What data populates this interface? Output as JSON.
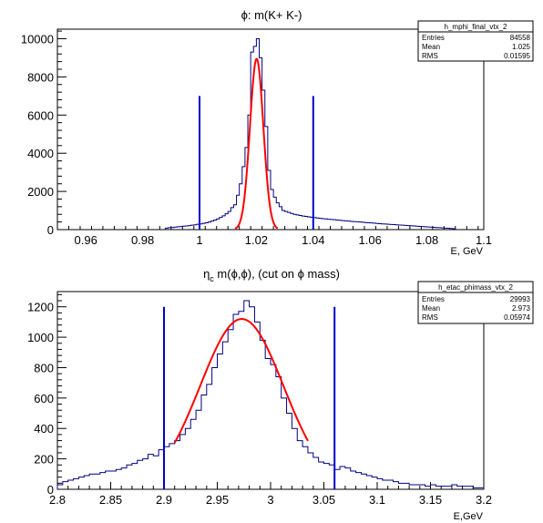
{
  "chart_data": [
    {
      "type": "histogram",
      "title": "ϕ: m(K+ K-)",
      "xlabel": "E, GeV",
      "ylabel": "",
      "xlim": [
        0.95,
        1.1
      ],
      "ylim": [
        0,
        10500
      ],
      "x_ticks": [
        "0.96",
        "0.98",
        "1",
        "1.02",
        "1.04",
        "1.06",
        "1.08",
        "1.1"
      ],
      "x_tick_values": [
        0.96,
        0.98,
        1.0,
        1.02,
        1.04,
        1.06,
        1.08,
        1.1
      ],
      "y_ticks": [
        "0",
        "2000",
        "4000",
        "6000",
        "8000",
        "10000"
      ],
      "y_tick_values": [
        0,
        2000,
        4000,
        6000,
        8000,
        10000
      ],
      "stats": {
        "name": "h_mphi_final_vtx_2",
        "rows": [
          {
            "label": "Entries",
            "value": "84558"
          },
          {
            "label": "Mean",
            "value": "1.025"
          },
          {
            "label": "RMS",
            "value": "0.01595"
          }
        ]
      },
      "cut_lines": [
        1.0,
        1.04
      ],
      "cut_line_height": 7000,
      "fit": {
        "type": "gaussian",
        "mean": 1.0201,
        "sigma": 0.00235,
        "amplitude": 8950,
        "range": [
          1.0125,
          1.0275
        ]
      },
      "bin_width": 0.001,
      "bins": [
        {
          "x": 0.988,
          "y": 80
        },
        {
          "x": 0.989,
          "y": 100
        },
        {
          "x": 0.99,
          "y": 110
        },
        {
          "x": 0.991,
          "y": 130
        },
        {
          "x": 0.992,
          "y": 150
        },
        {
          "x": 0.993,
          "y": 160
        },
        {
          "x": 0.994,
          "y": 180
        },
        {
          "x": 0.995,
          "y": 190
        },
        {
          "x": 0.996,
          "y": 210
        },
        {
          "x": 0.997,
          "y": 230
        },
        {
          "x": 0.998,
          "y": 250
        },
        {
          "x": 0.999,
          "y": 280
        },
        {
          "x": 1.0,
          "y": 300
        },
        {
          "x": 1.001,
          "y": 330
        },
        {
          "x": 1.002,
          "y": 360
        },
        {
          "x": 1.003,
          "y": 400
        },
        {
          "x": 1.004,
          "y": 450
        },
        {
          "x": 1.005,
          "y": 500
        },
        {
          "x": 1.006,
          "y": 560
        },
        {
          "x": 1.007,
          "y": 640
        },
        {
          "x": 1.008,
          "y": 720
        },
        {
          "x": 1.009,
          "y": 830
        },
        {
          "x": 1.01,
          "y": 950
        },
        {
          "x": 1.011,
          "y": 1150
        },
        {
          "x": 1.012,
          "y": 1300
        },
        {
          "x": 1.013,
          "y": 1800
        },
        {
          "x": 1.014,
          "y": 2400
        },
        {
          "x": 1.015,
          "y": 3300
        },
        {
          "x": 1.016,
          "y": 4300
        },
        {
          "x": 1.017,
          "y": 6000
        },
        {
          "x": 1.018,
          "y": 9300
        },
        {
          "x": 1.019,
          "y": 9600
        },
        {
          "x": 1.02,
          "y": 10000
        },
        {
          "x": 1.021,
          "y": 9000
        },
        {
          "x": 1.022,
          "y": 7300
        },
        {
          "x": 1.023,
          "y": 5400
        },
        {
          "x": 1.024,
          "y": 3100
        },
        {
          "x": 1.025,
          "y": 2100
        },
        {
          "x": 1.026,
          "y": 1700
        },
        {
          "x": 1.027,
          "y": 1400
        },
        {
          "x": 1.028,
          "y": 1200
        },
        {
          "x": 1.029,
          "y": 1000
        },
        {
          "x": 1.03,
          "y": 950
        },
        {
          "x": 1.031,
          "y": 900
        },
        {
          "x": 1.032,
          "y": 850
        },
        {
          "x": 1.033,
          "y": 800
        },
        {
          "x": 1.034,
          "y": 770
        },
        {
          "x": 1.035,
          "y": 740
        },
        {
          "x": 1.036,
          "y": 710
        },
        {
          "x": 1.037,
          "y": 690
        },
        {
          "x": 1.038,
          "y": 670
        },
        {
          "x": 1.039,
          "y": 650
        },
        {
          "x": 1.04,
          "y": 630
        },
        {
          "x": 1.041,
          "y": 610
        },
        {
          "x": 1.042,
          "y": 590
        },
        {
          "x": 1.043,
          "y": 570
        },
        {
          "x": 1.044,
          "y": 560
        },
        {
          "x": 1.045,
          "y": 540
        },
        {
          "x": 1.046,
          "y": 530
        },
        {
          "x": 1.047,
          "y": 520
        },
        {
          "x": 1.048,
          "y": 500
        },
        {
          "x": 1.049,
          "y": 490
        },
        {
          "x": 1.05,
          "y": 470
        },
        {
          "x": 1.051,
          "y": 460
        },
        {
          "x": 1.052,
          "y": 450
        },
        {
          "x": 1.053,
          "y": 430
        },
        {
          "x": 1.054,
          "y": 420
        },
        {
          "x": 1.055,
          "y": 410
        },
        {
          "x": 1.056,
          "y": 400
        },
        {
          "x": 1.057,
          "y": 390
        },
        {
          "x": 1.058,
          "y": 370
        },
        {
          "x": 1.059,
          "y": 360
        },
        {
          "x": 1.06,
          "y": 350
        },
        {
          "x": 1.061,
          "y": 340
        },
        {
          "x": 1.062,
          "y": 320
        },
        {
          "x": 1.063,
          "y": 310
        },
        {
          "x": 1.064,
          "y": 300
        },
        {
          "x": 1.065,
          "y": 290
        },
        {
          "x": 1.066,
          "y": 280
        },
        {
          "x": 1.067,
          "y": 270
        },
        {
          "x": 1.068,
          "y": 260
        },
        {
          "x": 1.069,
          "y": 250
        },
        {
          "x": 1.07,
          "y": 240
        },
        {
          "x": 1.071,
          "y": 230
        },
        {
          "x": 1.072,
          "y": 220
        },
        {
          "x": 1.073,
          "y": 210
        },
        {
          "x": 1.074,
          "y": 200
        },
        {
          "x": 1.075,
          "y": 190
        },
        {
          "x": 1.076,
          "y": 180
        },
        {
          "x": 1.077,
          "y": 170
        },
        {
          "x": 1.078,
          "y": 160
        },
        {
          "x": 1.079,
          "y": 150
        },
        {
          "x": 1.08,
          "y": 140
        },
        {
          "x": 1.081,
          "y": 130
        },
        {
          "x": 1.082,
          "y": 120
        },
        {
          "x": 1.083,
          "y": 110
        },
        {
          "x": 1.084,
          "y": 100
        },
        {
          "x": 1.085,
          "y": 90
        },
        {
          "x": 1.086,
          "y": 80
        },
        {
          "x": 1.087,
          "y": 70
        },
        {
          "x": 1.088,
          "y": 60
        },
        {
          "x": 1.089,
          "y": 50
        }
      ]
    },
    {
      "type": "histogram",
      "title_parts": [
        "η",
        "c",
        " m(ϕ,ϕ), (cut on ϕ mass)"
      ],
      "xlabel": "E,GeV",
      "ylabel": "",
      "xlim": [
        2.8,
        3.2
      ],
      "ylim": [
        0,
        1300
      ],
      "x_ticks": [
        "2.8",
        "2.85",
        "2.9",
        "2.95",
        "3",
        "3.05",
        "3.1",
        "3.15",
        "3.2"
      ],
      "x_tick_values": [
        2.8,
        2.85,
        2.9,
        2.95,
        3.0,
        3.05,
        3.1,
        3.15,
        3.2
      ],
      "y_ticks": [
        "0",
        "200",
        "400",
        "600",
        "800",
        "1000",
        "1200"
      ],
      "y_tick_values": [
        0,
        200,
        400,
        600,
        800,
        1000,
        1200
      ],
      "stats": {
        "name": "h_etac_phimass_vtx_2",
        "rows": [
          {
            "label": "Entries",
            "value": "29993"
          },
          {
            "label": "Mean",
            "value": "2.973"
          },
          {
            "label": "RMS",
            "value": "0.05974"
          }
        ]
      },
      "cut_lines": [
        2.9,
        3.06
      ],
      "cut_line_height": 1200,
      "fit": {
        "type": "gaussian",
        "mean": 2.973,
        "sigma": 0.0391,
        "amplitude": 1120,
        "range": [
          2.91,
          3.035
        ]
      },
      "bin_width": 0.005,
      "bins": [
        {
          "x": 2.8,
          "y": 30
        },
        {
          "x": 2.805,
          "y": 50
        },
        {
          "x": 2.81,
          "y": 60
        },
        {
          "x": 2.815,
          "y": 70
        },
        {
          "x": 2.82,
          "y": 80
        },
        {
          "x": 2.825,
          "y": 90
        },
        {
          "x": 2.83,
          "y": 100
        },
        {
          "x": 2.835,
          "y": 100
        },
        {
          "x": 2.84,
          "y": 110
        },
        {
          "x": 2.845,
          "y": 120
        },
        {
          "x": 2.85,
          "y": 120
        },
        {
          "x": 2.855,
          "y": 130
        },
        {
          "x": 2.86,
          "y": 140
        },
        {
          "x": 2.865,
          "y": 160
        },
        {
          "x": 2.87,
          "y": 170
        },
        {
          "x": 2.875,
          "y": 190
        },
        {
          "x": 2.88,
          "y": 200
        },
        {
          "x": 2.885,
          "y": 230
        },
        {
          "x": 2.89,
          "y": 220
        },
        {
          "x": 2.895,
          "y": 260
        },
        {
          "x": 2.9,
          "y": 280
        },
        {
          "x": 2.905,
          "y": 300
        },
        {
          "x": 2.91,
          "y": 320
        },
        {
          "x": 2.915,
          "y": 360
        },
        {
          "x": 2.92,
          "y": 400
        },
        {
          "x": 2.925,
          "y": 460
        },
        {
          "x": 2.93,
          "y": 520
        },
        {
          "x": 2.935,
          "y": 620
        },
        {
          "x": 2.94,
          "y": 690
        },
        {
          "x": 2.945,
          "y": 800
        },
        {
          "x": 2.95,
          "y": 890
        },
        {
          "x": 2.955,
          "y": 970
        },
        {
          "x": 2.96,
          "y": 1050
        },
        {
          "x": 2.965,
          "y": 1150
        },
        {
          "x": 2.97,
          "y": 1170
        },
        {
          "x": 2.975,
          "y": 1240
        },
        {
          "x": 2.98,
          "y": 1200
        },
        {
          "x": 2.985,
          "y": 1100
        },
        {
          "x": 2.99,
          "y": 980
        },
        {
          "x": 2.995,
          "y": 860
        },
        {
          "x": 3.0,
          "y": 820
        },
        {
          "x": 3.005,
          "y": 740
        },
        {
          "x": 3.01,
          "y": 600
        },
        {
          "x": 3.015,
          "y": 500
        },
        {
          "x": 3.02,
          "y": 400
        },
        {
          "x": 3.025,
          "y": 320
        },
        {
          "x": 3.03,
          "y": 280
        },
        {
          "x": 3.035,
          "y": 240
        },
        {
          "x": 3.04,
          "y": 210
        },
        {
          "x": 3.045,
          "y": 180
        },
        {
          "x": 3.05,
          "y": 170
        },
        {
          "x": 3.055,
          "y": 160
        },
        {
          "x": 3.06,
          "y": 130
        },
        {
          "x": 3.065,
          "y": 150
        },
        {
          "x": 3.07,
          "y": 140
        },
        {
          "x": 3.075,
          "y": 120
        },
        {
          "x": 3.08,
          "y": 110
        },
        {
          "x": 3.085,
          "y": 100
        },
        {
          "x": 3.09,
          "y": 90
        },
        {
          "x": 3.095,
          "y": 80
        },
        {
          "x": 3.1,
          "y": 70
        },
        {
          "x": 3.105,
          "y": 60
        },
        {
          "x": 3.11,
          "y": 60
        },
        {
          "x": 3.115,
          "y": 50
        },
        {
          "x": 3.12,
          "y": 40
        },
        {
          "x": 3.125,
          "y": 40
        },
        {
          "x": 3.13,
          "y": 30
        },
        {
          "x": 3.135,
          "y": 30
        },
        {
          "x": 3.14,
          "y": 30
        },
        {
          "x": 3.145,
          "y": 20
        },
        {
          "x": 3.15,
          "y": 30
        },
        {
          "x": 3.155,
          "y": 20
        },
        {
          "x": 3.16,
          "y": 20
        },
        {
          "x": 3.165,
          "y": 20
        },
        {
          "x": 3.17,
          "y": 30
        },
        {
          "x": 3.175,
          "y": 20
        },
        {
          "x": 3.18,
          "y": 20
        },
        {
          "x": 3.185,
          "y": 20
        },
        {
          "x": 3.19,
          "y": 10
        },
        {
          "x": 3.195,
          "y": 10
        }
      ]
    }
  ],
  "colors": {
    "histogram": "#00007f",
    "cut_line": "#0000cc",
    "fit": "#ff0000",
    "frame": "#000000"
  }
}
